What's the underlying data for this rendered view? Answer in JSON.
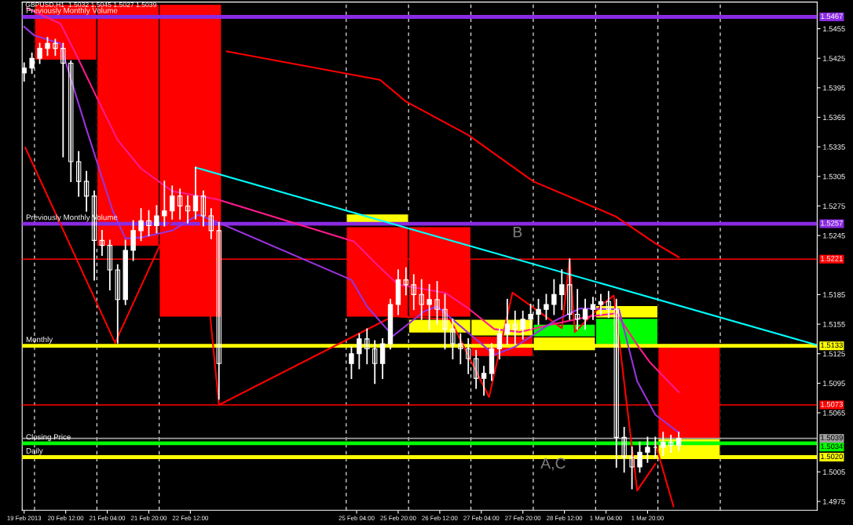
{
  "chart_data": {
    "type": "candlestick",
    "title": "GBPUSD,H1  1.5032 1.5045 1.5027 1.5039",
    "color": "#ffffff",
    "x": [
      "2013-02-19T20:00",
      "2013-02-19T23:00",
      "2013-02-20T02:00",
      "2013-02-20T05:00",
      "2013-02-20T08:00",
      "2013-02-20T11:00",
      "2013-02-20T14:00",
      "2013-02-20T17:00",
      "2013-02-20T20:00",
      "2013-02-20T23:00",
      "2013-02-21T02:00",
      "2013-02-21T05:00",
      "2013-02-21T08:00",
      "2013-02-21T11:00",
      "2013-02-21T14:00",
      "2013-02-21T17:00",
      "2013-02-21T20:00",
      "2013-02-21T23:00",
      "2013-02-22T02:00",
      "2013-02-22T05:00",
      "2013-02-22T08:00",
      "2013-02-22T11:00",
      "2013-02-22T14:00",
      "2013-02-22T17:00",
      "2013-02-22T20:00",
      "2013-02-22T23:00",
      "2013-02-25T02:00",
      "2013-02-25T05:00",
      "2013-02-25T08:00",
      "2013-02-25T11:00",
      "2013-02-25T14:00",
      "2013-02-25T17:00",
      "2013-02-25T20:00",
      "2013-02-25T23:00",
      "2013-02-26T02:00",
      "2013-02-26T05:00",
      "2013-02-26T08:00",
      "2013-02-26T11:00",
      "2013-02-26T14:00",
      "2013-02-26T17:00",
      "2013-02-26T20:00",
      "2013-02-26T23:00",
      "2013-02-27T02:00",
      "2013-02-27T05:00",
      "2013-02-27T08:00",
      "2013-02-27T11:00",
      "2013-02-27T14:00",
      "2013-02-27T17:00",
      "2013-02-27T20:00",
      "2013-02-27T23:00",
      "2013-02-28T02:00",
      "2013-02-28T05:00",
      "2013-02-28T08:00",
      "2013-02-28T11:00",
      "2013-02-28T14:00",
      "2013-02-28T17:00",
      "2013-02-28T20:00",
      "2013-02-28T23:00",
      "2013-03-01T02:00",
      "2013-03-01T05:00",
      "2013-03-01T08:00",
      "2013-03-01T11:00",
      "2013-03-01T14:00",
      "2013-03-01T17:00",
      "2013-03-01T20:00",
      "2013-03-01T23:00",
      "2013-03-02T02:00",
      "2013-03-02T05:00",
      "2013-03-02T08:00"
    ],
    "ohlc": [
      [
        1.541,
        1.542,
        1.5402,
        1.5415
      ],
      [
        1.5415,
        1.543,
        1.541,
        1.5425
      ],
      [
        1.5425,
        1.544,
        1.542,
        1.5435
      ],
      [
        1.5435,
        1.5446,
        1.5428,
        1.544
      ],
      [
        1.544,
        1.5444,
        1.5428,
        1.5435
      ],
      [
        1.5435,
        1.544,
        1.5325,
        1.542
      ],
      [
        1.542,
        1.5422,
        1.53,
        1.532
      ],
      [
        1.532,
        1.533,
        1.5285,
        1.53
      ],
      [
        1.53,
        1.531,
        1.527,
        1.5285
      ],
      [
        1.5285,
        1.529,
        1.52,
        1.524
      ],
      [
        1.524,
        1.525,
        1.5225,
        1.5235
      ],
      [
        1.5235,
        1.524,
        1.519,
        1.521
      ],
      [
        1.521,
        1.5215,
        1.5136,
        1.518
      ],
      [
        1.518,
        1.524,
        1.5175,
        1.523
      ],
      [
        1.523,
        1.526,
        1.522,
        1.525
      ],
      [
        1.525,
        1.5272,
        1.524,
        1.526
      ],
      [
        1.526,
        1.527,
        1.5245,
        1.5255
      ],
      [
        1.5255,
        1.5275,
        1.5248,
        1.5265
      ],
      [
        1.5265,
        1.53,
        1.5255,
        1.527
      ],
      [
        1.527,
        1.5295,
        1.5262,
        1.5285
      ],
      [
        1.5285,
        1.5292,
        1.5262,
        1.5275
      ],
      [
        1.5275,
        1.5285,
        1.5258,
        1.527
      ],
      [
        1.527,
        1.5314,
        1.5262,
        1.5285
      ],
      [
        1.5285,
        1.529,
        1.5255,
        1.5265
      ],
      [
        1.5265,
        1.5272,
        1.5242,
        1.525
      ],
      [
        1.525,
        1.5258,
        1.5079,
        1.5115
      ],
      [
        1.5115,
        1.5132,
        1.51,
        1.5125
      ],
      [
        1.5125,
        1.5145,
        1.511,
        1.514
      ],
      [
        1.514,
        1.515,
        1.5115,
        1.513
      ],
      [
        1.513,
        1.5138,
        1.5095,
        1.5115
      ],
      [
        1.5115,
        1.514,
        1.51,
        1.5135
      ],
      [
        1.5135,
        1.518,
        1.513,
        1.5175
      ],
      [
        1.5175,
        1.521,
        1.5165,
        1.52
      ],
      [
        1.52,
        1.5212,
        1.5185,
        1.5195
      ],
      [
        1.5195,
        1.5205,
        1.517,
        1.5185
      ],
      [
        1.5185,
        1.52,
        1.516,
        1.5175
      ],
      [
        1.5175,
        1.5195,
        1.515,
        1.518
      ],
      [
        1.518,
        1.5198,
        1.5155,
        1.517
      ],
      [
        1.517,
        1.5185,
        1.513,
        1.515
      ],
      [
        1.515,
        1.516,
        1.512,
        1.5135
      ],
      [
        1.5135,
        1.5145,
        1.5115,
        1.513
      ],
      [
        1.513,
        1.514,
        1.5105,
        1.512
      ],
      [
        1.512,
        1.5128,
        1.509,
        1.51
      ],
      [
        1.51,
        1.5112,
        1.5083,
        1.5105
      ],
      [
        1.5105,
        1.5135,
        1.5098,
        1.513
      ],
      [
        1.513,
        1.515,
        1.512,
        1.5145
      ],
      [
        1.5145,
        1.518,
        1.5135,
        1.5155
      ],
      [
        1.5155,
        1.5168,
        1.5135,
        1.515
      ],
      [
        1.515,
        1.5168,
        1.514,
        1.516
      ],
      [
        1.516,
        1.5175,
        1.515,
        1.5165
      ],
      [
        1.5165,
        1.518,
        1.5155,
        1.517
      ],
      [
        1.517,
        1.5185,
        1.516,
        1.5175
      ],
      [
        1.5175,
        1.52,
        1.5165,
        1.5185
      ],
      [
        1.5185,
        1.521,
        1.517,
        1.5195
      ],
      [
        1.5195,
        1.5221,
        1.516,
        1.5165
      ],
      [
        1.5165,
        1.519,
        1.515,
        1.516
      ],
      [
        1.516,
        1.518,
        1.515,
        1.517
      ],
      [
        1.517,
        1.5182,
        1.516,
        1.5175
      ],
      [
        1.5175,
        1.5185,
        1.5165,
        1.5178
      ],
      [
        1.5178,
        1.5188,
        1.5162,
        1.517
      ],
      [
        1.517,
        1.518,
        1.501,
        1.504
      ],
      [
        1.504,
        1.505,
        1.5005,
        1.502
      ],
      [
        1.502,
        1.503,
        1.4988,
        1.501
      ],
      [
        1.501,
        1.5035,
        1.5005,
        1.5025
      ],
      [
        1.5025,
        1.504,
        1.5015,
        1.503
      ],
      [
        1.503,
        1.504,
        1.502,
        1.503
      ],
      [
        1.503,
        1.5045,
        1.5022,
        1.5035
      ],
      [
        1.5035,
        1.5042,
        1.5025,
        1.5032
      ],
      [
        1.5032,
        1.5045,
        1.5027,
        1.5039
      ]
    ],
    "series": [
      {
        "type": "bar",
        "color": "#ff0000",
        "x": [
          "2013-02-20T12:00",
          "2013-02-21T12:00",
          "2013-02-22T12:00",
          "2013-02-25T12:00",
          "2013-02-26T12:00",
          "2013-02-27T12:00",
          "2013-03-02T12:00"
        ],
        "base": [
          1.5423,
          1.5234,
          1.5162,
          1.5162,
          1.5162,
          1.5122,
          1.5039
        ],
        "values": [
          0.0057,
          0.0246,
          0.0318,
          0.0092,
          0.0092,
          0.0021,
          0.0095
        ]
      },
      {
        "type": "bar",
        "color": "#ffff00",
        "x": [
          "2013-02-25T12:00",
          "2013-02-26T12:00",
          "2013-02-27T12:00",
          "2013-02-28T12:00",
          "2013-03-01T12:00",
          "2013-03-02T12:00"
        ],
        "base": [
          1.5258,
          1.5146,
          1.5143,
          1.5128,
          1.5161,
          1.5019
        ],
        "values": [
          0.0009,
          0.0014,
          0.0017,
          0.0014,
          0.0013,
          0.002
        ]
      },
      {
        "type": "bar",
        "color": "#00ff00",
        "x": [
          "2013-02-28T12:00",
          "2013-03-01T12:00"
        ],
        "base": [
          1.5142,
          1.5134
        ],
        "values": [
          0.0013,
          0.0027
        ]
      },
      {
        "type": "line",
        "color": "#ff0000",
        "x": [
          "2013-02-19T20:30",
          "2013-02-21T07:00",
          "2013-02-22T14:00",
          "2013-02-22T23:00",
          "2013-02-25T18:00",
          "2013-02-26T16:00",
          "2013-02-27T07:00",
          "2013-02-27T16:00",
          "2013-02-28T11:00",
          "2013-02-28T14:00",
          "2013-02-28T16:00",
          "2013-03-01T03:00",
          "2013-03-01T07:00",
          "2013-03-01T16:00",
          "2013-03-01T23:00"
        ],
        "values": [
          1.5334,
          1.5136,
          1.5314,
          1.5073,
          1.5163,
          1.516,
          1.5081,
          1.5187,
          1.5151,
          1.5221,
          1.5147,
          1.5176,
          1.5184,
          1.4986,
          1.5013
        ]
      },
      {
        "type": "line",
        "color": "#ff0000",
        "x": [
          "2013-03-01T23:00",
          "2013-03-02T06:00"
        ],
        "values": [
          1.5034,
          1.497
        ]
      },
      {
        "type": "line",
        "color": "#ff0000",
        "x": [
          "2013-02-23T02:00",
          "2013-02-25T13:00",
          "2013-02-25T23:00",
          "2013-02-26T23:00",
          "2013-02-28T00:00",
          "2013-03-01T01:00",
          "2013-03-01T08:00",
          "2013-03-01T23:00",
          "2013-03-02T08:00"
        ],
        "values": [
          1.5432,
          1.5403,
          1.5381,
          1.5347,
          1.53,
          1.5272,
          1.5264,
          1.5237,
          1.5223
        ]
      },
      {
        "type": "line",
        "color": "#ff1a8c",
        "x": [
          "2013-02-19T21:00",
          "2013-02-20T10:00",
          "2013-02-20T16:00",
          "2013-02-21T00:00",
          "2013-02-21T08:00",
          "2013-02-21T17:00",
          "2013-02-22T05:00",
          "2013-02-22T22:00",
          "2013-02-25T03:00",
          "2013-02-25T12:00",
          "2013-02-25T20:00",
          "2013-02-26T14:00",
          "2013-02-26T23:00",
          "2013-02-27T09:00",
          "2013-02-27T19:00",
          "2013-02-28T06:00",
          "2013-02-28T22:00",
          "2013-03-01T08:00",
          "2013-03-01T16:00",
          "2013-03-01T21:00",
          "2013-03-02T08:00"
        ],
        "values": [
          1.5476,
          1.546,
          1.5429,
          1.5385,
          1.5342,
          1.5313,
          1.529,
          1.5282,
          1.5239,
          1.5215,
          1.5195,
          1.5187,
          1.5171,
          1.515,
          1.5147,
          1.5154,
          1.5163,
          1.5166,
          1.5134,
          1.5116,
          1.5086
        ]
      },
      {
        "type": "line",
        "color": "#9933dd",
        "x": [
          "2013-02-19T20:00",
          "2013-02-20T00:00",
          "2013-02-20T10:00",
          "2013-02-20T12:00",
          "2013-02-20T20:00",
          "2013-02-21T06:00",
          "2013-02-21T11:00",
          "2013-02-21T17:00",
          "2013-02-22T05:00",
          "2013-02-22T15:00",
          "2013-02-22T22:00",
          "2013-02-25T02:00",
          "2013-02-25T08:00",
          "2013-02-25T18:00",
          "2013-02-26T06:00",
          "2013-02-26T11:00",
          "2013-02-27T00:00",
          "2013-02-27T09:00",
          "2013-02-27T17:00",
          "2013-02-28T08:00",
          "2013-02-28T18:00",
          "2013-03-01T09:00",
          "2013-03-01T16:00",
          "2013-03-01T23:00",
          "2013-03-02T08:00"
        ],
        "values": [
          1.5457,
          1.5448,
          1.544,
          1.5421,
          1.5353,
          1.5271,
          1.5242,
          1.5243,
          1.525,
          1.5266,
          1.5259,
          1.52,
          1.5173,
          1.5143,
          1.5168,
          1.5173,
          1.5144,
          1.5124,
          1.5132,
          1.5158,
          1.5171,
          1.517,
          1.5097,
          1.5063,
          1.5045
        ]
      },
      {
        "type": "line",
        "color": "#00ffff",
        "x": [
          "2013-02-22T14:00",
          "2013-03-04T13:00"
        ],
        "values": [
          1.5314,
          1.5134
        ]
      }
    ],
    "ref_lines": [
      {
        "axis": "y",
        "value": 1.5467,
        "label": "Previously Monthly Volume",
        "color": "#8a2be2"
      },
      {
        "axis": "y",
        "value": 1.5257,
        "label": "Previously Monthly Volume",
        "color": "#8a2be2"
      },
      {
        "axis": "y",
        "value": 1.5221,
        "color": "#ff0000"
      },
      {
        "axis": "y",
        "value": 1.5133,
        "label": "Monthly",
        "color": "#ffff00"
      },
      {
        "axis": "y",
        "value": 1.5073,
        "color": "#ff0000"
      },
      {
        "axis": "y",
        "value": 1.5039,
        "color": "#a0a0a0"
      },
      {
        "axis": "y",
        "value": 1.5034,
        "label": "Closing Price",
        "color": "#00ff00"
      },
      {
        "axis": "y",
        "value": 1.502,
        "label": "Daily",
        "color": "#ffff00"
      },
      {
        "axis": "x",
        "value": "2013-02-20T00:00",
        "color": "#ffffff",
        "line_style": "dashed"
      },
      {
        "axis": "x",
        "value": "2013-02-21T00:00",
        "color": "#ffffff",
        "line_style": "dashed"
      },
      {
        "axis": "x",
        "value": "2013-02-22T00:00",
        "color": "#ffffff",
        "line_style": "dashed"
      },
      {
        "axis": "x",
        "value": "2013-02-25T00:00",
        "color": "#ffffff",
        "line_style": "dashed"
      },
      {
        "axis": "x",
        "value": "2013-02-26T00:00",
        "color": "#ffffff",
        "line_style": "dashed"
      },
      {
        "axis": "x",
        "value": "2013-02-27T00:00",
        "color": "#ffffff",
        "line_style": "dashed"
      },
      {
        "axis": "x",
        "value": "2013-02-28T00:00",
        "color": "#ffffff",
        "line_style": "dashed"
      },
      {
        "axis": "x",
        "value": "2013-03-01T00:00",
        "color": "#ffffff",
        "line_style": "dashed"
      },
      {
        "axis": "x",
        "value": "2013-03-02T00:00",
        "color": "#ffffff",
        "line_style": "dashed"
      },
      {
        "axis": "x",
        "value": "2013-03-03T00:00",
        "color": "#ffffff",
        "line_style": "dashed"
      }
    ],
    "annotations": [
      "1.5467",
      "1.5257",
      "1.5221",
      "1.5133",
      "1.5073",
      "1.5039",
      "1.5034",
      "1.5020",
      "B",
      "A,C"
    ],
    "xlim": [
      "2013-02-19T19:15",
      "2013-03-04T13:18"
    ],
    "ylim": [
      1.4966,
      1.5482
    ],
    "xticks": [
      {
        "value": "2013-02-19T20:00",
        "label": "19 Feb 2013"
      },
      {
        "value": "2013-02-20T12:00",
        "label": "20 Feb 12:00"
      },
      {
        "value": "2013-02-21T04:00",
        "label": "21 Feb 04:00"
      },
      {
        "value": "2013-02-21T20:00",
        "label": "21 Feb 20:00"
      },
      {
        "value": "2013-02-22T12:00",
        "label": "22 Feb 12:00"
      },
      {
        "value": "2013-02-25T04:00",
        "label": "25 Feb 04:00"
      },
      {
        "value": "2013-02-25T20:00",
        "label": "25 Feb 20:00"
      },
      {
        "value": "2013-02-26T12:00",
        "label": "26 Feb 12:00"
      },
      {
        "value": "2013-02-27T04:00",
        "label": "27 Feb 04:00"
      },
      {
        "value": "2013-02-27T20:00",
        "label": "27 Feb 20:00"
      },
      {
        "value": "2013-02-28T12:00",
        "label": "28 Feb 12:00"
      },
      {
        "value": "2013-03-01T04:00",
        "label": "1 Mar 04:00"
      },
      {
        "value": "2013-03-01T20:00",
        "label": "1 Mar 20:00"
      }
    ],
    "yticks": [
      {
        "value": 1.4975,
        "label": "1.4975"
      },
      {
        "value": 1.5005,
        "label": "1.5005"
      },
      {
        "value": 1.5065,
        "label": "1.5065"
      },
      {
        "value": 1.5095,
        "label": "1.5095"
      },
      {
        "value": 1.5125,
        "label": "1.5125"
      },
      {
        "value": 1.5155,
        "label": "1.5155"
      },
      {
        "value": 1.5185,
        "label": "1.5185"
      },
      {
        "value": 1.5245,
        "label": "1.5245"
      },
      {
        "value": 1.5275,
        "label": "1.5275"
      },
      {
        "value": 1.5305,
        "label": "1.5305"
      },
      {
        "value": 1.5335,
        "label": "1.5335"
      },
      {
        "value": 1.5365,
        "label": "1.5365"
      },
      {
        "value": 1.5395,
        "label": "1.5395"
      },
      {
        "value": 1.5425,
        "label": "1.5425"
      },
      {
        "value": 1.5455,
        "label": "1.5455"
      }
    ],
    "grid": false,
    "legend": false
  }
}
